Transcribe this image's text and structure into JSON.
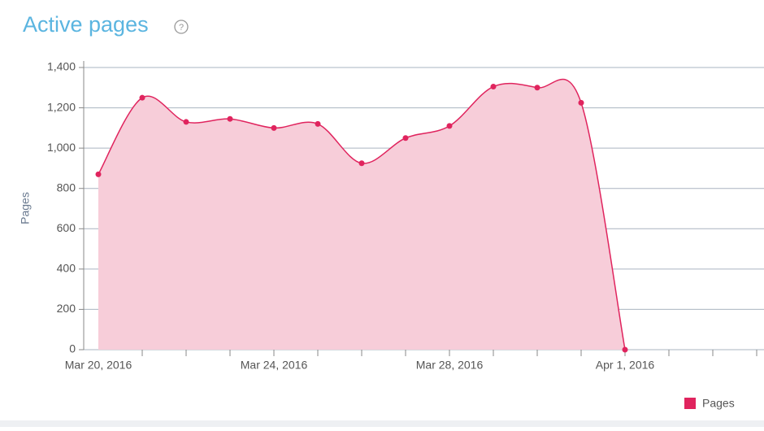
{
  "chart_data": {
    "type": "area",
    "title": "Active pages",
    "y_label": "Pages",
    "categories": [
      "Mar 20, 2016",
      null,
      null,
      null,
      "Mar 24, 2016",
      null,
      null,
      null,
      "Mar 28, 2016",
      null,
      null,
      null,
      "Apr 1, 2016",
      null,
      null,
      null
    ],
    "series": [
      {
        "name": "Pages",
        "color": "#e0245e",
        "fill": "#f7cdd9",
        "values": [
          870,
          1250,
          1130,
          1145,
          1100,
          1120,
          925,
          1050,
          1110,
          1305,
          1300,
          1225,
          0,
          null,
          null,
          null
        ]
      }
    ],
    "ylim": [
      0,
      1400
    ],
    "yticks": [
      0,
      200,
      400,
      600,
      800,
      {
        "value": 1000,
        "label": "1,000"
      },
      {
        "value": 1200,
        "label": "1,200"
      },
      {
        "value": 1400,
        "label": "1,400"
      }
    ],
    "grid": true,
    "legend": "bottom-right"
  }
}
